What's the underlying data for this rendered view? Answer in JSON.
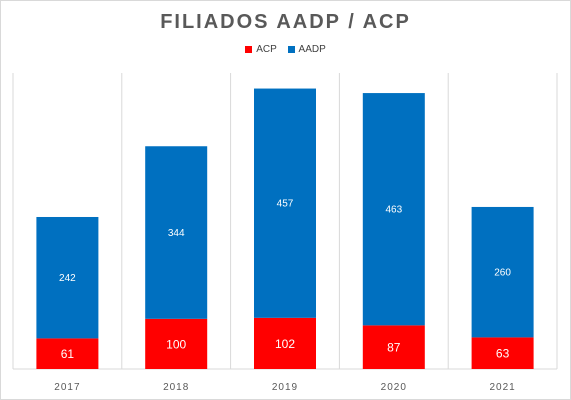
{
  "chart_data": {
    "type": "bar",
    "stacked": true,
    "title": "FILIADOS AADP / ACP",
    "categories": [
      "2017",
      "2018",
      "2019",
      "2020",
      "2021"
    ],
    "series": [
      {
        "name": "ACP",
        "color": "#ff0000",
        "values": [
          61,
          100,
          102,
          87,
          63
        ]
      },
      {
        "name": "AADP",
        "color": "#0070c0",
        "values": [
          242,
          344,
          457,
          463,
          260
        ]
      }
    ],
    "ylim": [
      0,
      590
    ],
    "grid": "vertical separators",
    "legend_position": "top"
  }
}
